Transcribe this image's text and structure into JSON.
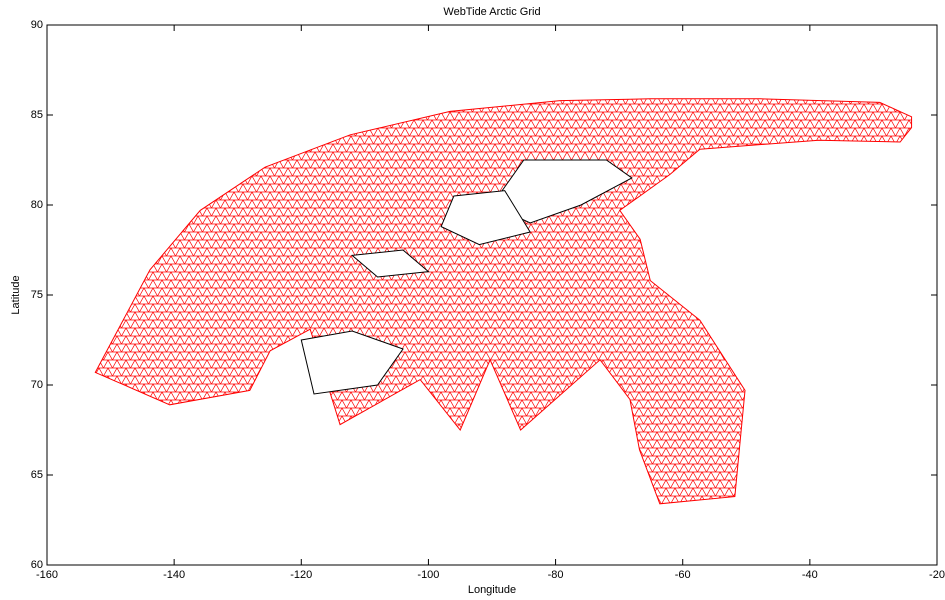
{
  "chart_data": {
    "type": "mesh",
    "title": "WebTide Arctic Grid",
    "x_label": "Longitude",
    "y_label": "Latitude",
    "color": "#ff0000",
    "outline": {
      "lon": [
        -152.4,
        -143.8,
        -135.9,
        -125.7,
        -112.3,
        -96.6,
        -79.3,
        -65.1,
        -47.8,
        -29,
        -24,
        -24,
        -25.8,
        -38.6,
        -57.3,
        -62,
        -69.9,
        -66.7,
        -65.1,
        -57.3,
        -50.2,
        -51.8,
        -63.6,
        -66.8,
        -68.3,
        -73,
        -85.5,
        -90.3,
        -95,
        -101.3,
        -113.9,
        -118.6,
        -124.9,
        -128.1,
        -140.7
      ],
      "lat": [
        70.7,
        76.4,
        79.7,
        82.1,
        83.9,
        85.2,
        85.8,
        85.9,
        85.9,
        85.7,
        84.9,
        84.3,
        83.5,
        83.6,
        83.1,
        81.7,
        79.7,
        78.1,
        75.8,
        73.6,
        69.7,
        63.8,
        63.4,
        66.4,
        69.2,
        71.4,
        67.5,
        71.4,
        67.5,
        70.3,
        67.8,
        73.1,
        71.9,
        69.7,
        68.9
      ]
    },
    "holes": [
      {
        "lon": [
          -85,
          -72,
          -68,
          -76,
          -84,
          -90
        ],
        "lat": [
          82.5,
          82.5,
          81.5,
          80,
          79,
          80
        ]
      },
      {
        "lon": [
          -120,
          -112,
          -104,
          -108,
          -118
        ],
        "lat": [
          72.5,
          73,
          72,
          70,
          69.5
        ]
      },
      {
        "lon": [
          -96,
          -88,
          -84,
          -92,
          -98
        ],
        "lat": [
          80.5,
          80.8,
          78.5,
          77.8,
          78.8
        ]
      },
      {
        "lon": [
          -112,
          -104,
          -100,
          -108
        ],
        "lat": [
          77.2,
          77.5,
          76.3,
          76
        ]
      }
    ],
    "xlim": [
      -160,
      -20
    ],
    "xticks": [
      -160,
      -140,
      -120,
      -100,
      -80,
      -60,
      -40,
      -20
    ],
    "ylim": [
      60,
      90
    ],
    "yticks": [
      60,
      65,
      70,
      75,
      80,
      85,
      90
    ]
  }
}
